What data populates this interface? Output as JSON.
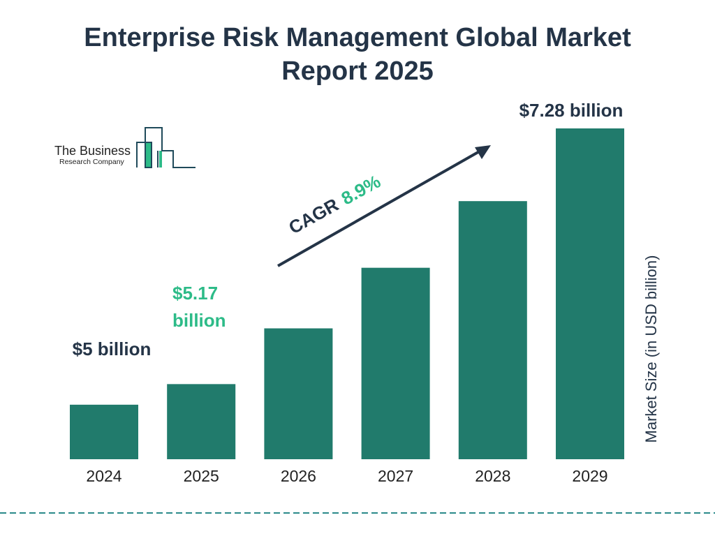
{
  "title_line1": "Enterprise Risk Management Global Market",
  "title_line2": "Report 2025",
  "logo": {
    "line1": "The Business",
    "line2": "Research Company"
  },
  "cagr": {
    "label": "CAGR",
    "value": "8.9%"
  },
  "colors": {
    "bar": "#217b6c",
    "title": "#243447",
    "accent": "#2dbb88",
    "dashed_line": "#2a8a8a"
  },
  "chart_data": {
    "type": "bar",
    "title": "Enterprise Risk Management Global Market Report 2025",
    "categories": [
      "2024",
      "2025",
      "2026",
      "2027",
      "2028",
      "2029"
    ],
    "values": [
      5.0,
      5.17,
      5.63,
      6.13,
      6.68,
      7.28
    ],
    "data_labels": [
      {
        "category": "2024",
        "text": "$5 billion"
      },
      {
        "category": "2025",
        "text_line1": "$5.17",
        "text_line2": "billion"
      },
      {
        "category": "2029",
        "text": "$7.28 billion"
      }
    ],
    "xlabel": "",
    "ylabel": "Market Size (in USD billion)",
    "ylim": [
      4.55,
      7.28
    ],
    "grid": false,
    "legend": "none"
  }
}
